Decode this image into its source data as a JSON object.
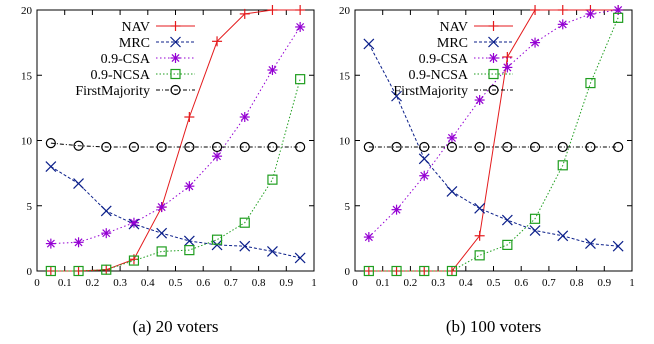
{
  "colors": {
    "NAV": "#e41a1c",
    "MRC": "#0b1f8a",
    "0.9-CSA": "#9400d3",
    "0.9-NCSA": "#1f9e1f",
    "FirstMajority": "#000000"
  },
  "chart_data": [
    {
      "type": "line",
      "caption": "(a) 20 voters",
      "xlim": [
        0,
        1
      ],
      "ylim": [
        0,
        20
      ],
      "xticks": [
        "0",
        "0.1",
        "0.2",
        "0.3",
        "0.4",
        "0.5",
        "0.6",
        "0.7",
        "0.8",
        "0.9",
        "1"
      ],
      "yticks": [
        "0",
        "5",
        "10",
        "15",
        "20"
      ],
      "legend_position": "top-left",
      "x": [
        0.05,
        0.15,
        0.25,
        0.35,
        0.45,
        0.55,
        0.65,
        0.75,
        0.85,
        0.95
      ],
      "series": [
        {
          "name": "NAV",
          "marker": "plus",
          "values": [
            0,
            0,
            0.1,
            0.9,
            4.9,
            11.8,
            17.6,
            19.7,
            20,
            20
          ]
        },
        {
          "name": "MRC",
          "marker": "x",
          "values": [
            8,
            6.7,
            4.6,
            3.6,
            2.9,
            2.3,
            2.0,
            1.9,
            1.5,
            1.0
          ]
        },
        {
          "name": "0.9-CSA",
          "marker": "star",
          "values": [
            2.1,
            2.2,
            2.9,
            3.7,
            4.9,
            6.5,
            8.8,
            11.8,
            15.4,
            18.7
          ]
        },
        {
          "name": "0.9-NCSA",
          "marker": "square",
          "values": [
            0,
            0,
            0.1,
            0.8,
            1.5,
            1.6,
            2.4,
            3.7,
            7.0,
            14.7
          ]
        },
        {
          "name": "FirstMajority",
          "marker": "circle",
          "values": [
            9.8,
            9.6,
            9.5,
            9.5,
            9.5,
            9.5,
            9.5,
            9.5,
            9.5,
            9.5
          ]
        }
      ]
    },
    {
      "type": "line",
      "caption": "(b) 100 voters",
      "xlim": [
        0,
        1
      ],
      "ylim": [
        0,
        20
      ],
      "xticks": [
        "0",
        "0.1",
        "0.2",
        "0.3",
        "0.4",
        "0.5",
        "0.6",
        "0.7",
        "0.8",
        "0.9",
        "1"
      ],
      "yticks": [
        "0",
        "5",
        "10",
        "15",
        "20"
      ],
      "legend_position": "top-left",
      "x": [
        0.05,
        0.15,
        0.25,
        0.35,
        0.45,
        0.55,
        0.65,
        0.75,
        0.85,
        0.95
      ],
      "series": [
        {
          "name": "NAV",
          "marker": "plus",
          "values": [
            0,
            0,
            0,
            0,
            2.7,
            16.4,
            20,
            20,
            20,
            20
          ]
        },
        {
          "name": "MRC",
          "marker": "x",
          "values": [
            17.4,
            13.4,
            8.6,
            6.1,
            4.8,
            3.9,
            3.1,
            2.7,
            2.1,
            1.9
          ]
        },
        {
          "name": "0.9-CSA",
          "marker": "star",
          "values": [
            2.6,
            4.7,
            7.3,
            10.2,
            13.1,
            15.6,
            17.5,
            18.9,
            19.7,
            20
          ]
        },
        {
          "name": "0.9-NCSA",
          "marker": "square",
          "values": [
            0,
            0,
            0,
            0,
            1.2,
            2.0,
            4.0,
            8.1,
            14.4,
            19.4
          ]
        },
        {
          "name": "FirstMajority",
          "marker": "circle",
          "values": [
            9.5,
            9.5,
            9.5,
            9.5,
            9.5,
            9.5,
            9.5,
            9.5,
            9.5,
            9.5
          ]
        }
      ]
    }
  ]
}
